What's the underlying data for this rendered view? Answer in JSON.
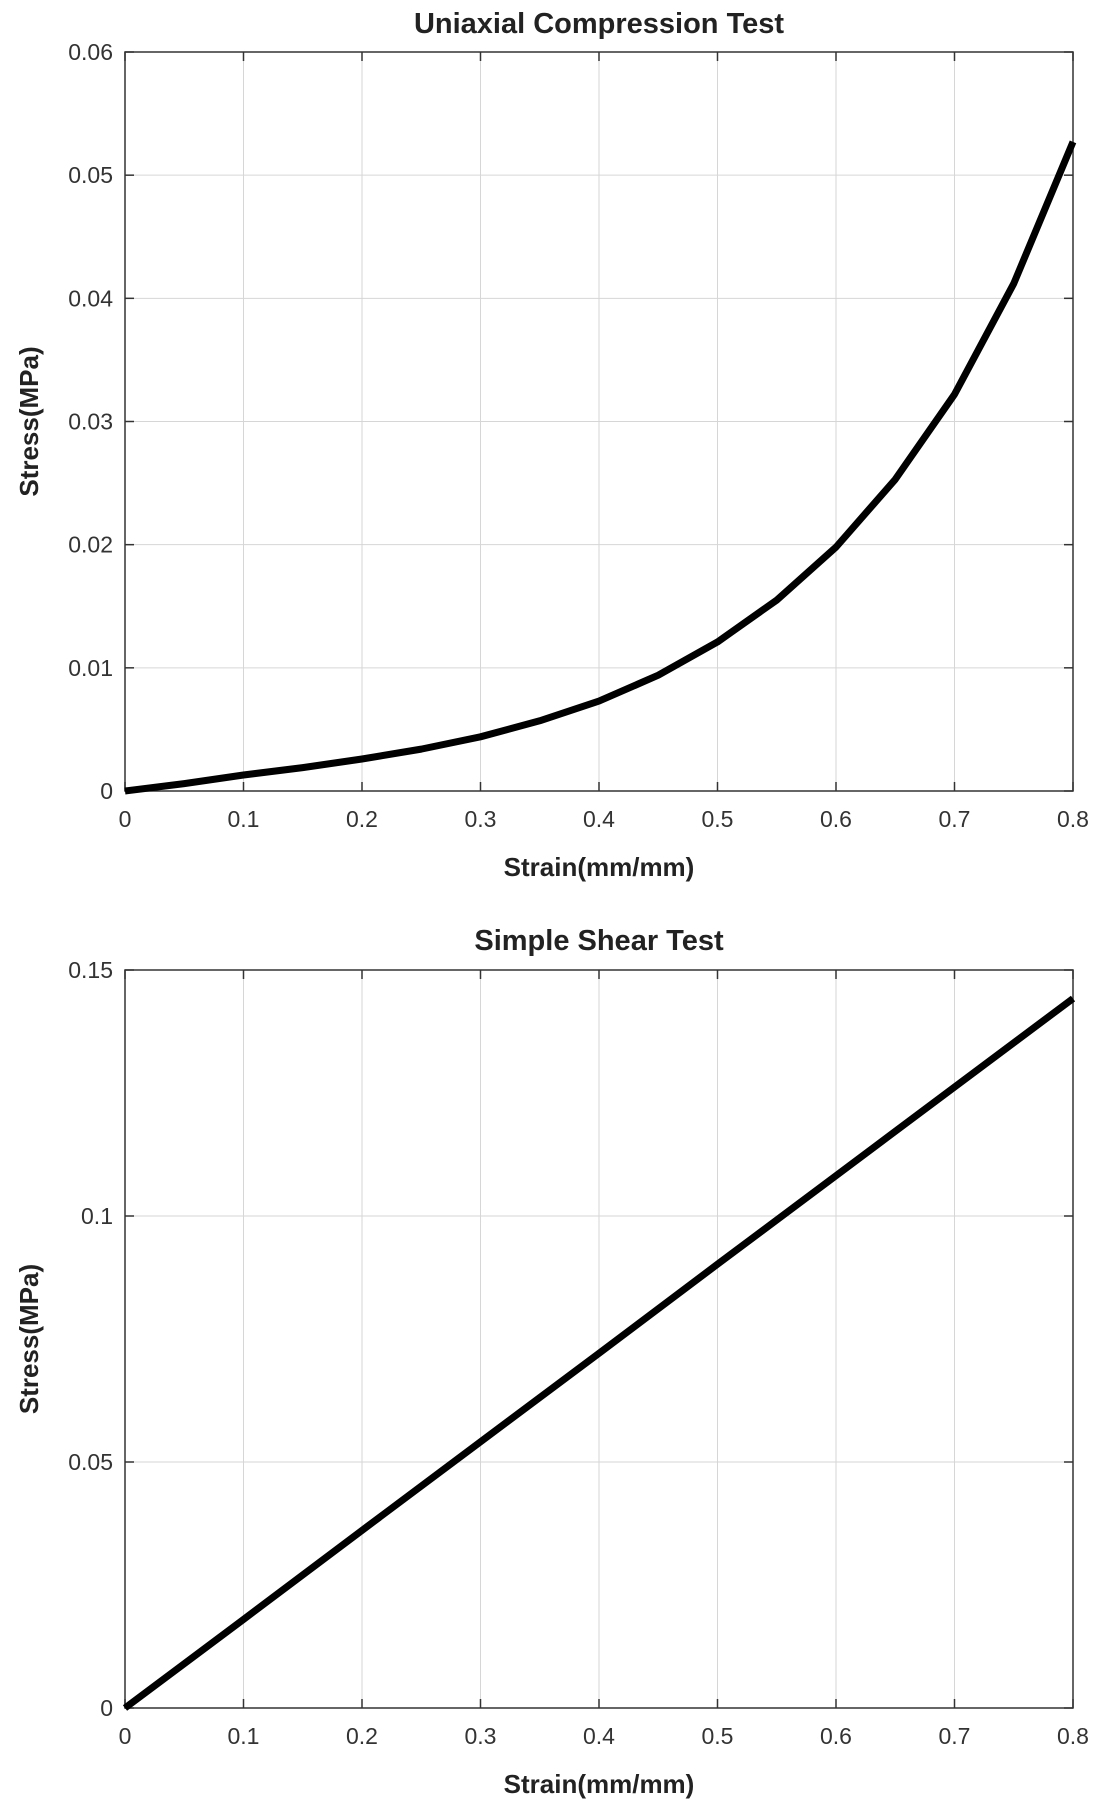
{
  "chart_data": [
    {
      "type": "line",
      "title": "Uniaxial Compression Test",
      "xlabel": "Strain(mm/mm)",
      "ylabel": "Stress(MPa)",
      "xlim": [
        0,
        0.8
      ],
      "ylim": [
        0,
        0.06
      ],
      "xticks": [
        0,
        0.1,
        0.2,
        0.3,
        0.4,
        0.5,
        0.6,
        0.7,
        0.8
      ],
      "xtick_labels": [
        "0",
        "0.1",
        "0.2",
        "0.3",
        "0.4",
        "0.5",
        "0.6",
        "0.7",
        "0.8"
      ],
      "yticks": [
        0,
        0.01,
        0.02,
        0.03,
        0.04,
        0.05,
        0.06
      ],
      "ytick_labels": [
        "0",
        "0.01",
        "0.02",
        "0.03",
        "0.04",
        "0.05",
        "0.06"
      ],
      "grid": true,
      "series": [
        {
          "x": [
            0,
            0.05,
            0.1,
            0.15,
            0.2,
            0.25,
            0.3,
            0.35,
            0.4,
            0.45,
            0.5,
            0.55,
            0.6,
            0.65,
            0.7,
            0.75,
            0.8
          ],
          "values": [
            0,
            0.0006,
            0.0013,
            0.0019,
            0.0026,
            0.0034,
            0.0044,
            0.0057,
            0.0073,
            0.0094,
            0.0121,
            0.0155,
            0.0198,
            0.0253,
            0.0322,
            0.0412,
            0.0527
          ]
        }
      ],
      "color": "#000000"
    },
    {
      "type": "line",
      "title": "Simple Shear Test",
      "xlabel": "Strain(mm/mm)",
      "ylabel": "Stress(MPa)",
      "xlim": [
        0,
        0.8
      ],
      "ylim": [
        0,
        0.15
      ],
      "xticks": [
        0,
        0.1,
        0.2,
        0.3,
        0.4,
        0.5,
        0.6,
        0.7,
        0.8
      ],
      "xtick_labels": [
        "0",
        "0.1",
        "0.2",
        "0.3",
        "0.4",
        "0.5",
        "0.6",
        "0.7",
        "0.8"
      ],
      "yticks": [
        0,
        0.05,
        0.1,
        0.15
      ],
      "ytick_labels": [
        "0",
        "0.05",
        "0.1",
        "0.15"
      ],
      "grid": true,
      "series": [
        {
          "x": [
            0,
            0.1,
            0.2,
            0.3,
            0.4,
            0.5,
            0.6,
            0.7,
            0.8
          ],
          "values": [
            0,
            0.018,
            0.0361,
            0.0541,
            0.0721,
            0.0902,
            0.1082,
            0.1262,
            0.1442
          ]
        }
      ],
      "color": "#000000"
    }
  ]
}
